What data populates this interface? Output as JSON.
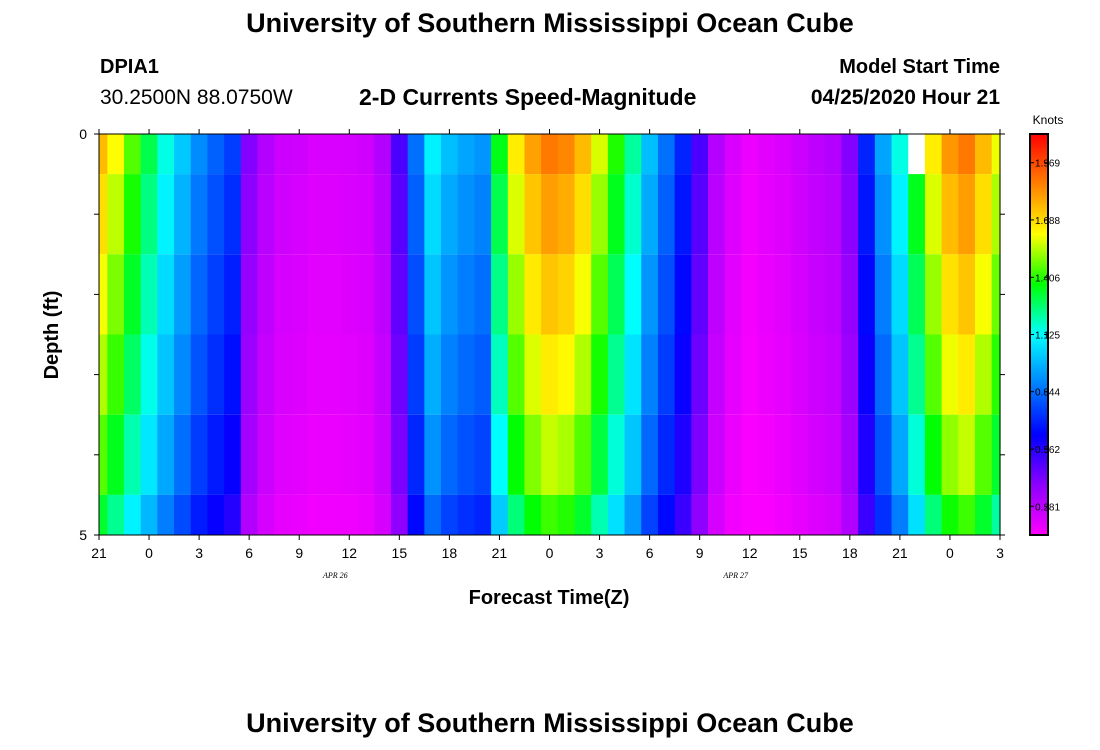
{
  "header": {
    "title": "University of Southern Mississippi Ocean Cube",
    "station_id": "DPIA1",
    "station_coords": "30.2500N 88.0750W",
    "plot_title": "2-D Currents Speed-Magnitude",
    "model_start_label": "Model Start Time",
    "model_start_value": "04/25/2020 Hour 21"
  },
  "footer": {
    "title": "University of Southern Mississippi Ocean Cube"
  },
  "colors": {
    "background": "#ffffff",
    "colormap": [
      "#ff00ff",
      "#8c00ff",
      "#0000ff",
      "#0080ff",
      "#00ffff",
      "#00ff00",
      "#ffff00",
      "#ff8000",
      "#ff0000"
    ],
    "missing": "#ffffff"
  },
  "chart_data": {
    "type": "heatmap",
    "title": "2-D Currents Speed-Magnitude",
    "xlabel": "Forecast Time(Z)",
    "ylabel": "Depth (ft)",
    "x_unit": "hours since 04/25/2020 21Z",
    "xlim": [
      0,
      54
    ],
    "ylim": [
      0,
      5
    ],
    "y_inverted": true,
    "x_tick_values": [
      0,
      3,
      6,
      9,
      12,
      15,
      18,
      21,
      24,
      27,
      30,
      33,
      36,
      39,
      42,
      45,
      48,
      51,
      54
    ],
    "x_tick_labels": [
      "21",
      "0",
      "3",
      "6",
      "9",
      "12",
      "15",
      "18",
      "21",
      "0",
      "3",
      "6",
      "9",
      "12",
      "15",
      "18",
      "21",
      "0",
      "3"
    ],
    "y_tick_values": [
      0,
      1,
      2,
      3,
      4,
      5
    ],
    "y_tick_labels": [
      "0",
      "",
      "",
      "",
      "",
      "5"
    ],
    "date_labels": [
      {
        "text": "APR 26",
        "x": 15
      },
      {
        "text": "APR 27",
        "x": 39
      }
    ],
    "colorbar": {
      "label": "Knots",
      "min": 0.14,
      "max": 2.11,
      "ticks": [
        0.281,
        0.562,
        0.844,
        1.125,
        1.406,
        1.688,
        1.969
      ],
      "tick_labels": [
        "0.281",
        "0.562",
        "0.844",
        "1.125",
        "1.406",
        "1.688",
        "1.969"
      ]
    },
    "depth_layers": [
      {
        "top": 0.0,
        "bottom": 0.5
      },
      {
        "top": 0.5,
        "bottom": 1.5
      },
      {
        "top": 1.5,
        "bottom": 2.5
      },
      {
        "top": 2.5,
        "bottom": 3.5
      },
      {
        "top": 3.5,
        "bottom": 4.5
      },
      {
        "top": 4.5,
        "bottom": 5.0
      }
    ],
    "time_hours": [
      0,
      1,
      2,
      3,
      4,
      5,
      6,
      7,
      8,
      9,
      10,
      11,
      12,
      13,
      14,
      15,
      16,
      17,
      18,
      19,
      20,
      21,
      22,
      23,
      24,
      25,
      26,
      27,
      28,
      29,
      30,
      31,
      32,
      33,
      34,
      35,
      36,
      37,
      38,
      39,
      40,
      41,
      42,
      43,
      44,
      45,
      46,
      47,
      48,
      49,
      50,
      51,
      52,
      53,
      54
    ],
    "profile_speed_knots": [
      1.75,
      1.62,
      1.45,
      1.3,
      1.15,
      1.02,
      0.9,
      0.82,
      0.75,
      0.4,
      0.3,
      0.25,
      0.24,
      0.22,
      0.22,
      0.23,
      0.24,
      0.3,
      0.5,
      0.85,
      1.1,
      1.0,
      0.95,
      0.92,
      1.35,
      1.65,
      1.8,
      1.88,
      1.85,
      1.75,
      1.58,
      1.4,
      1.22,
      1.0,
      0.85,
      0.7,
      0.5,
      0.3,
      0.22,
      0.18,
      0.2,
      0.22,
      0.25,
      0.28,
      0.3,
      0.4,
      0.7,
      0.95,
      1.15,
      1.4,
      1.65,
      1.82,
      1.88,
      1.75,
      1.6
    ],
    "depth_factors": [
      1.0,
      0.96,
      0.92,
      0.88,
      0.83,
      0.76
    ],
    "missing_cells": [
      {
        "hour": 49,
        "layer": 0
      }
    ]
  }
}
